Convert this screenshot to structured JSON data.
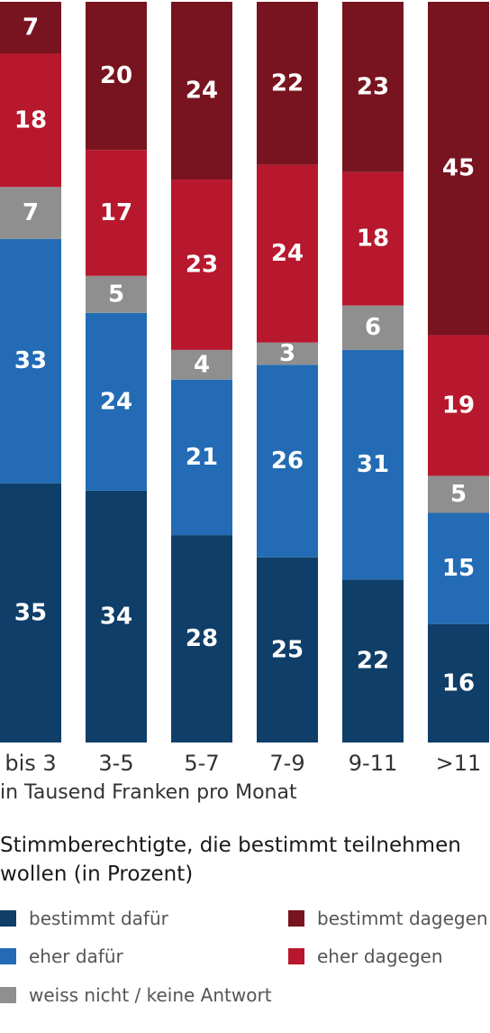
{
  "chart_data": {
    "type": "bar",
    "stacked": true,
    "orientation": "vertical",
    "categories": [
      "bis 3",
      "3-5",
      "5-7",
      "7-9",
      "9-11",
      ">11"
    ],
    "series": [
      {
        "name": "bestimmt dafür",
        "color": "#0f3e68",
        "values": [
          35,
          34,
          28,
          25,
          22,
          16
        ]
      },
      {
        "name": "eher dafür",
        "color": "#236cb5",
        "values": [
          33,
          24,
          21,
          26,
          31,
          15
        ]
      },
      {
        "name": "weiss nicht / keine Antwort",
        "color": "#8f8f8f",
        "values": [
          7,
          5,
          4,
          3,
          6,
          5
        ]
      },
      {
        "name": "eher dagegen",
        "color": "#b8182d",
        "values": [
          18,
          17,
          23,
          24,
          18,
          19
        ]
      },
      {
        "name": "bestimmt dagegen",
        "color": "#78141f",
        "values": [
          7,
          20,
          24,
          22,
          23,
          45
        ]
      }
    ],
    "ylim": [
      0,
      100
    ],
    "xlabel": "in Tausend Franken pro Monat",
    "subtitle": "Stimmberechtigte, die bestimmt teilnehmen wollen (in Prozent)",
    "legend": [
      {
        "label": "bestimmt dafür",
        "color": "#0f3e68"
      },
      {
        "label": "bestimmt dagegen",
        "color": "#78141f"
      },
      {
        "label": "eher dafür",
        "color": "#236cb5"
      },
      {
        "label": "eher dagegen",
        "color": "#b8182d"
      },
      {
        "label": "weiss nicht / keine Antwort",
        "color": "#8f8f8f"
      }
    ],
    "legend_position": "bottom"
  }
}
